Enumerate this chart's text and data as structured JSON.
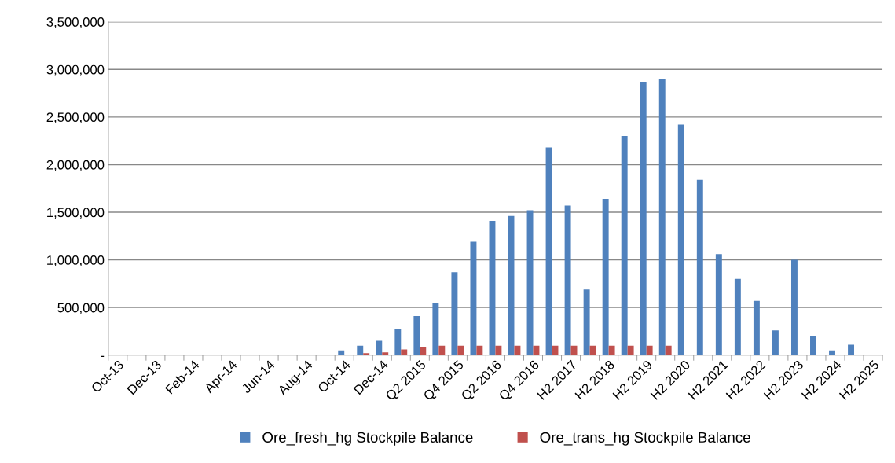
{
  "chart_data": {
    "type": "bar",
    "categories": [
      "Oct-13",
      null,
      "Dec-13",
      null,
      "Feb-14",
      null,
      "Apr-14",
      null,
      "Jun-14",
      null,
      "Aug-14",
      null,
      "Oct-14",
      null,
      "Dec-14",
      null,
      "Q2 2015",
      null,
      "Q4 2015",
      null,
      "Q2 2016",
      null,
      "Q4 2016",
      null,
      "H2 2017",
      null,
      "H2 2018",
      null,
      "H2 2019",
      null,
      "H2 2020",
      null,
      "H2 2021",
      null,
      "H2 2022",
      null,
      "H2 2023",
      null,
      "H2 2024",
      null,
      "H2 2025"
    ],
    "series": [
      {
        "name": "Ore_fresh_hg Stockpile Balance",
        "color": "#4f81bd",
        "values": [
          0,
          0,
          0,
          0,
          0,
          0,
          0,
          0,
          0,
          0,
          0,
          0,
          50000,
          100000,
          150000,
          270000,
          410000,
          550000,
          870000,
          1190000,
          1410000,
          1460000,
          1520000,
          2180000,
          1570000,
          690000,
          1640000,
          2300000,
          2870000,
          2900000,
          2420000,
          1840000,
          1060000,
          800000,
          570000,
          260000,
          1000000,
          200000,
          50000,
          110000,
          0
        ]
      },
      {
        "name": "Ore_trans_hg Stockpile Balance",
        "color": "#c0504d",
        "values": [
          0,
          0,
          0,
          0,
          0,
          0,
          0,
          0,
          0,
          0,
          0,
          0,
          null,
          20000,
          30000,
          60000,
          80000,
          100000,
          100000,
          100000,
          100000,
          100000,
          100000,
          100000,
          100000,
          100000,
          100000,
          100000,
          100000,
          100000,
          0,
          0,
          0,
          0,
          0,
          0,
          0,
          0,
          0,
          0,
          0
        ]
      }
    ],
    "ylim": [
      0,
      3500000
    ],
    "yticks": [
      {
        "value": 0,
        "label": "-"
      },
      {
        "value": 500000,
        "label": "500,000"
      },
      {
        "value": 1000000,
        "label": "1,000,000"
      },
      {
        "value": 1500000,
        "label": "1,500,000"
      },
      {
        "value": 2000000,
        "label": "2,000,000"
      },
      {
        "value": 2500000,
        "label": "2,500,000"
      },
      {
        "value": 3000000,
        "label": "3,000,000"
      },
      {
        "value": 3500000,
        "label": "3,500,000"
      }
    ],
    "grid": "y",
    "legend": "bottom"
  }
}
